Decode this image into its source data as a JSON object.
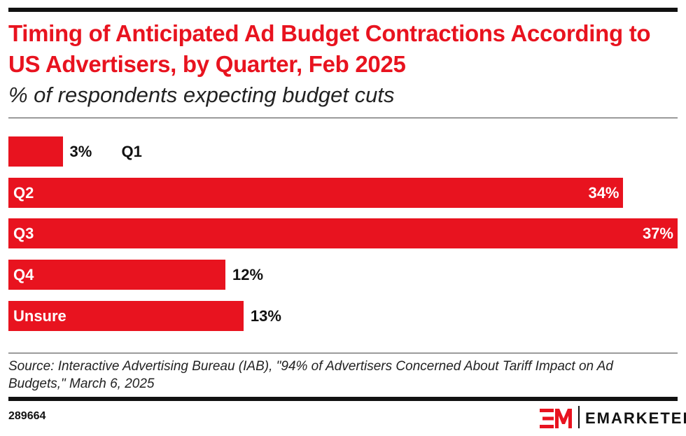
{
  "title": "Timing of Anticipated Ad Budget Contractions According to US Advertisers, by Quarter, Feb 2025",
  "subtitle": "% of respondents expecting budget cuts",
  "chart_data": {
    "type": "bar",
    "orientation": "horizontal",
    "categories": [
      "Q1",
      "Q2",
      "Q3",
      "Q4",
      "Unsure"
    ],
    "values": [
      3,
      34,
      37,
      12,
      13
    ],
    "value_labels": [
      "3%",
      "34%",
      "37%",
      "12%",
      "13%"
    ],
    "bar_color": "#e8131f",
    "grid": false
  },
  "source": "Source: Interactive Advertising Bureau (IAB), \"94% of Advertisers Concerned About Tariff Impact on Ad Budgets,\" March 6, 2025",
  "chart_id": "289664",
  "brand": {
    "name": "EMARKETER",
    "logo_letters": "EM",
    "accent": "#e8131f"
  }
}
